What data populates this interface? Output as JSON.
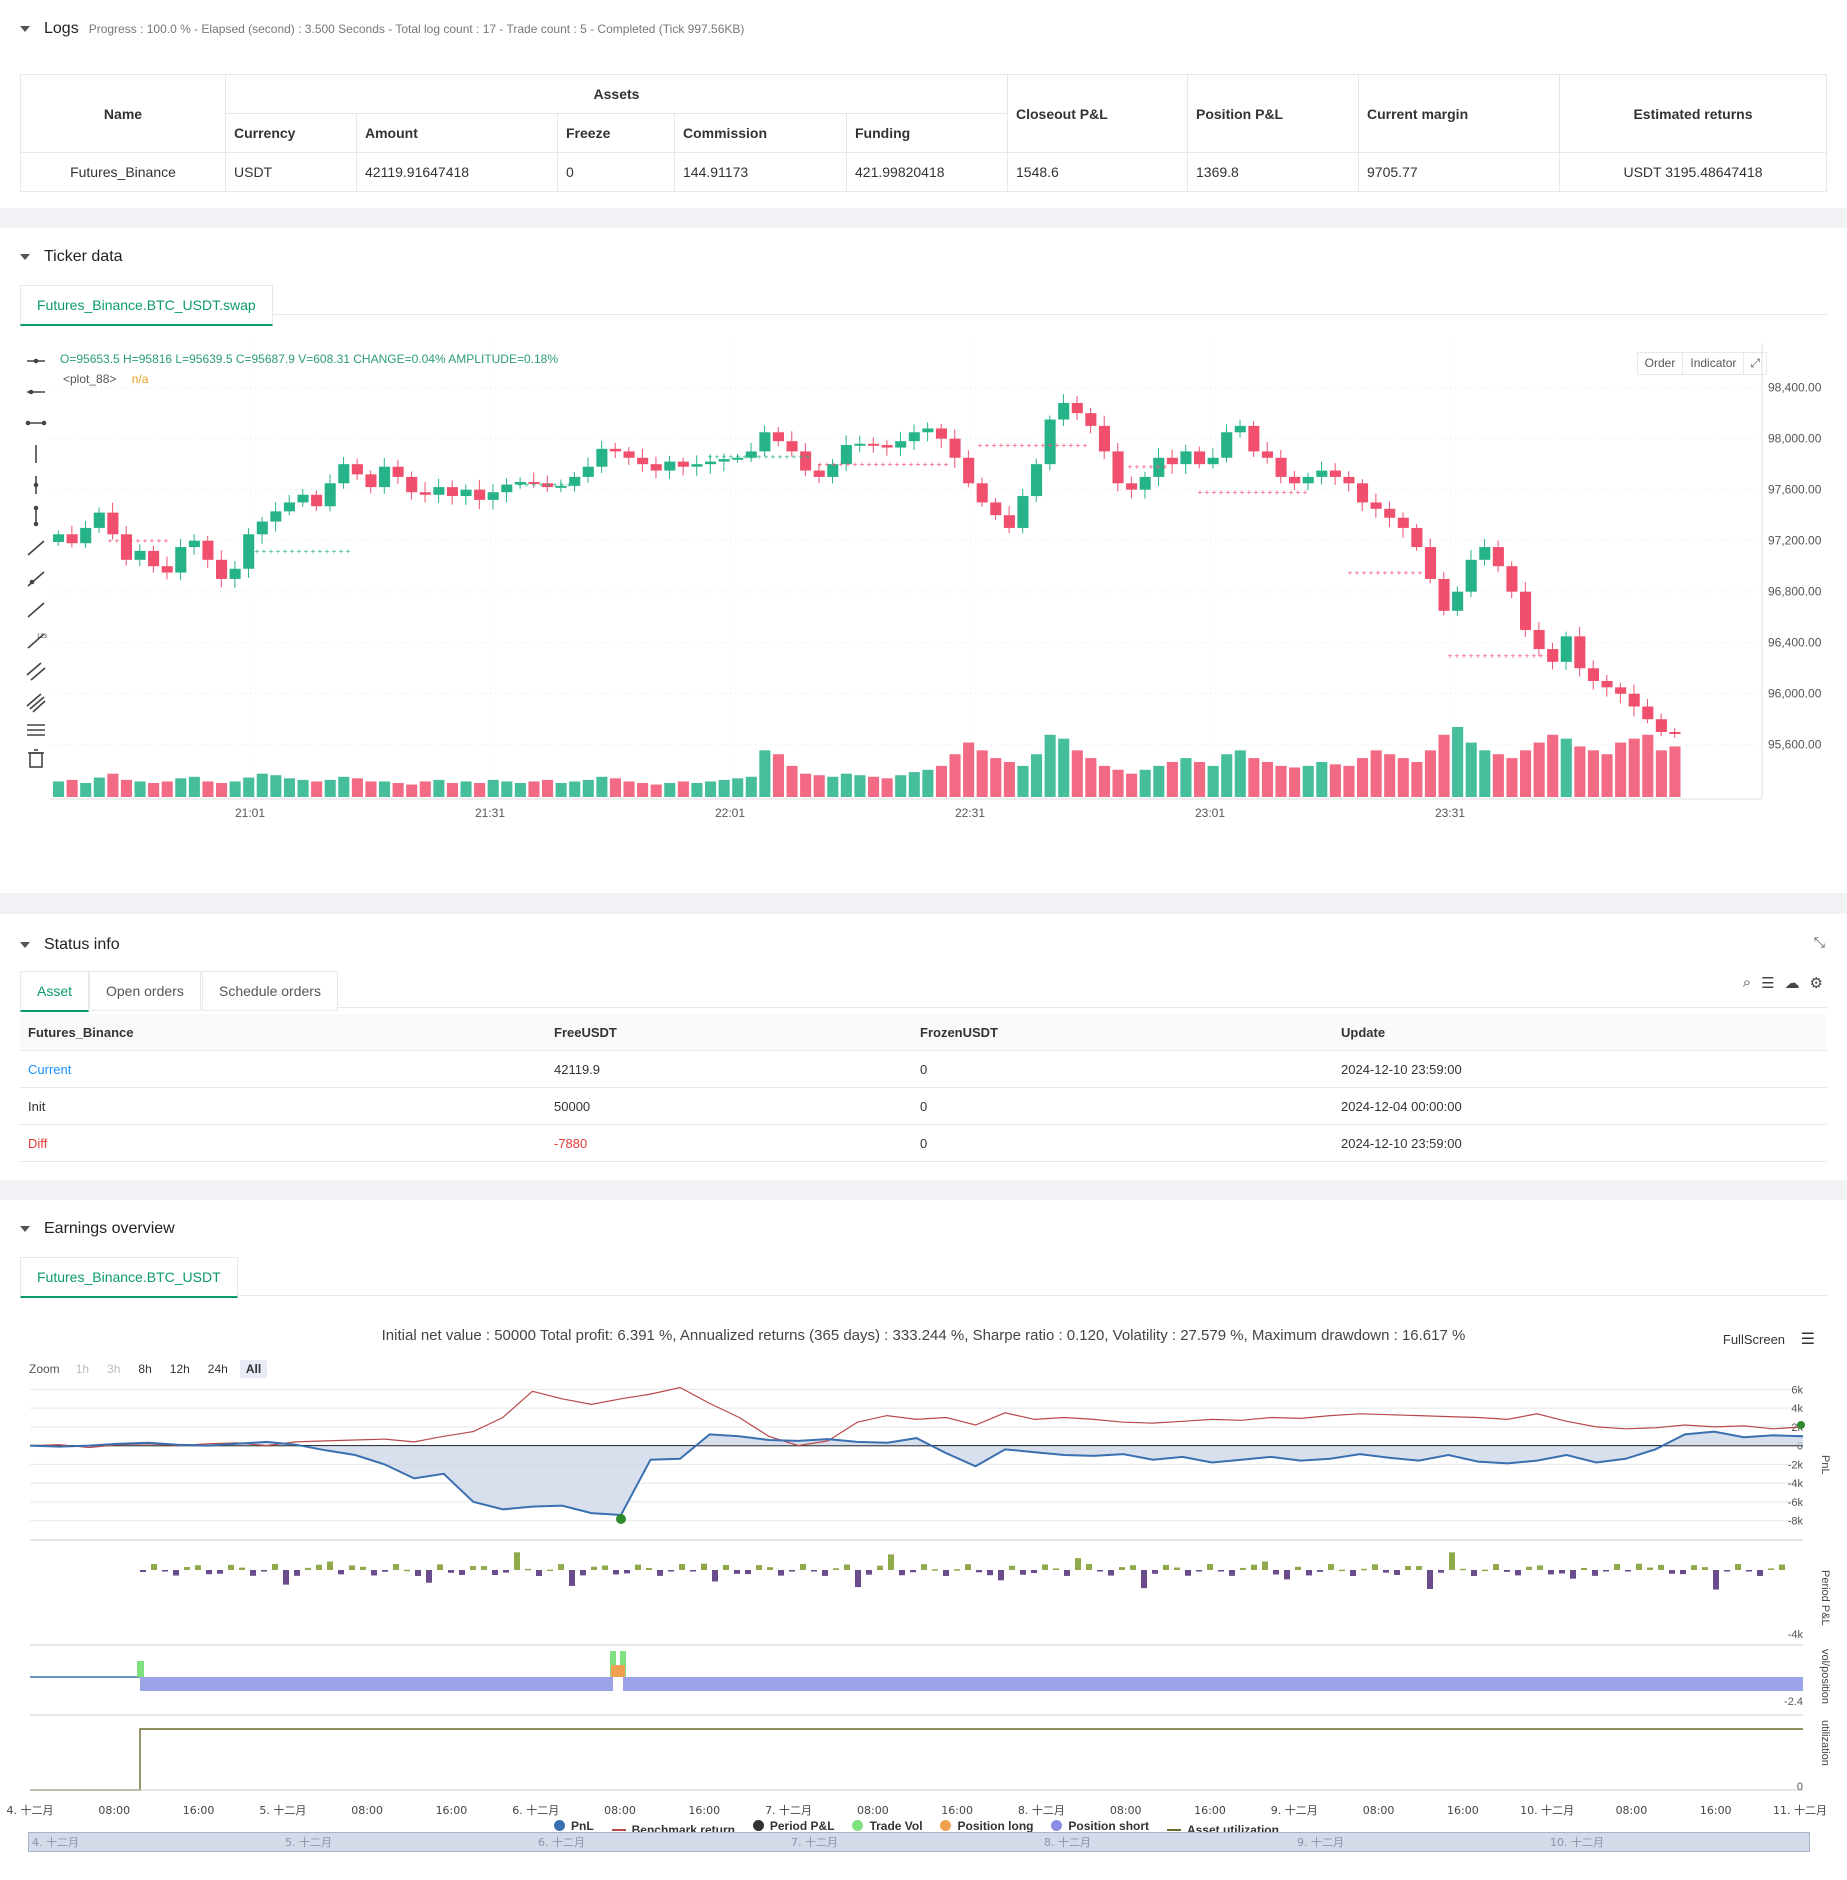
{
  "logs": {
    "title": "Logs",
    "summary": "Progress : 100.0 % - Elapsed (second) : 3.500  Seconds - Total log count : 17 - Trade count : 5 - Completed (Tick 997.56KB)"
  },
  "assets": {
    "headers": {
      "name": "Name",
      "assets": "Assets",
      "currency": "Currency",
      "amount": "Amount",
      "freeze": "Freeze",
      "commission": "Commission",
      "funding": "Funding",
      "closeout": "Closeout P&L",
      "position": "Position P&L",
      "margin": "Current margin",
      "returns": "Estimated returns"
    },
    "row": {
      "name": "Futures_Binance",
      "currency": "USDT",
      "amount": "42119.91647418",
      "freeze": "0",
      "commission": "144.91173",
      "funding": "421.99820418",
      "closeout": "1548.6",
      "position": "1369.8",
      "margin": "9705.77",
      "returns": "USDT 3195.48647418"
    }
  },
  "ticker": {
    "title": "Ticker data",
    "tab": "Futures_Binance.BTC_USDT.swap",
    "ohlc": "O=95653.5 H=95816 L=95639.5 C=95687.9 V=608.31 CHANGE=0.04% AMPLITUDE=0.18%",
    "plot_label": "<plot_88>",
    "plot_value": "n/a",
    "order_btn": "Order",
    "indicator_btn": "Indicator",
    "y_ticks": [
      "98,400.00",
      "98,000.00",
      "97,600.00",
      "97,200.00",
      "96,800.00",
      "96,400.00",
      "96,000.00",
      "95,600.00"
    ],
    "x_ticks": [
      "21:01",
      "21:31",
      "22:01",
      "22:31",
      "23:01",
      "23:31"
    ]
  },
  "chart_data": {
    "type": "candlestick",
    "y_range": [
      95300,
      98750
    ],
    "y_ticks": [
      98400,
      98000,
      97600,
      97200,
      96800,
      96400,
      96000,
      95600
    ],
    "x_labels": [
      "21:01",
      "21:31",
      "22:01",
      "22:31",
      "23:01",
      "23:31"
    ],
    "closes": [
      97250,
      97180,
      97300,
      97420,
      97250,
      97050,
      97120,
      97000,
      96950,
      97150,
      97200,
      97050,
      96900,
      96980,
      97250,
      97350,
      97430,
      97500,
      97560,
      97470,
      97650,
      97800,
      97720,
      97620,
      97780,
      97700,
      97580,
      97560,
      97620,
      97550,
      97600,
      97520,
      97580,
      97640,
      97660,
      97650,
      97620,
      97630,
      97700,
      97780,
      97920,
      97900,
      97850,
      97800,
      97750,
      97820,
      97780,
      97800,
      97820,
      97840,
      97850,
      97900,
      98050,
      97980,
      97900,
      97750,
      97700,
      97800,
      97950,
      97960,
      97950,
      97930,
      97980,
      98050,
      98080,
      98000,
      97850,
      97650,
      97500,
      97400,
      97300,
      97550,
      97800,
      98150,
      98280,
      98200,
      98100,
      97900,
      97650,
      97600,
      97700,
      97850,
      97800,
      97900,
      97800,
      97850,
      98050,
      98100,
      97900,
      97850,
      97700,
      97650,
      97700,
      97750,
      97700,
      97650,
      97500,
      97450,
      97380,
      97300,
      97150,
      96900,
      96650,
      96800,
      97050,
      97150,
      97000,
      96800,
      96500,
      96350,
      96250,
      96450,
      96200,
      96100,
      96050,
      96000,
      95900,
      95800,
      95700,
      95690
    ],
    "volumes": [
      20,
      22,
      18,
      25,
      30,
      22,
      20,
      18,
      20,
      24,
      26,
      20,
      18,
      20,
      25,
      30,
      28,
      24,
      22,
      20,
      22,
      26,
      24,
      20,
      20,
      18,
      16,
      20,
      22,
      18,
      20,
      18,
      22,
      20,
      18,
      20,
      22,
      18,
      20,
      22,
      26,
      24,
      20,
      18,
      16,
      18,
      20,
      18,
      20,
      22,
      24,
      26,
      60,
      55,
      40,
      30,
      28,
      26,
      30,
      28,
      26,
      24,
      28,
      32,
      35,
      40,
      55,
      70,
      60,
      50,
      45,
      40,
      55,
      80,
      75,
      60,
      50,
      40,
      35,
      30,
      35,
      40,
      45,
      50,
      45,
      40,
      55,
      60,
      50,
      45,
      40,
      38,
      40,
      45,
      42,
      40,
      50,
      60,
      55,
      50,
      45,
      60,
      80,
      90,
      70,
      60,
      55,
      50,
      60,
      70,
      80,
      75,
      65,
      60,
      55,
      70,
      75,
      80,
      60,
      65
    ]
  },
  "status": {
    "title": "Status info",
    "tabs": [
      "Asset",
      "Open orders",
      "Schedule orders"
    ],
    "headers": [
      "Futures_Binance",
      "FreeUSDT",
      "FrozenUSDT",
      "Update"
    ],
    "rows": [
      {
        "label": "Current",
        "free": "42119.9",
        "frozen": "0",
        "update": "2024-12-10 23:59:00"
      },
      {
        "label": "Init",
        "free": "50000",
        "frozen": "0",
        "update": "2024-12-04 00:00:00"
      },
      {
        "label": "Diff",
        "free": "-7880",
        "frozen": "0",
        "update": "2024-12-10 23:59:00"
      }
    ],
    "colors": {
      "current": "#1890ff",
      "diff": "#e53935"
    }
  },
  "earnings": {
    "title": "Earnings overview",
    "tab": "Futures_Binance.BTC_USDT",
    "summary": "Initial net value : 50000 Total profit: 6.391 %, Annualized returns (365 days) : 333.244 %, Sharpe ratio : 0.120, Volatility : 27.579 %, Maximum drawdown : 16.617 %",
    "fullscreen": "FullScreen",
    "zoom_label": "Zoom",
    "zoom_buttons": [
      "1h",
      "3h",
      "8h",
      "12h",
      "24h",
      "All"
    ],
    "pnl_ticks": [
      "6k",
      "4k",
      "2k",
      "0",
      "-2k",
      "-4k",
      "-6k",
      "-8k"
    ],
    "period_tick": "-4k",
    "vol_tick": "-2.4",
    "util_tick": "0",
    "axis_titles": [
      "PnL",
      "Period P&L",
      "vol/position",
      "utilization"
    ],
    "x_ticks": [
      "4. 十二月",
      "08:00",
      "16:00",
      "5. 十二月",
      "08:00",
      "16:00",
      "6. 十二月",
      "08:00",
      "16:00",
      "7. 十二月",
      "08:00",
      "16:00",
      "8. 十二月",
      "08:00",
      "16:00",
      "9. 十二月",
      "08:00",
      "16:00",
      "10. 十二月",
      "08:00",
      "16:00",
      "11. 十二月"
    ],
    "nav_ticks": [
      "4. 十二月",
      "5. 十二月",
      "6. 十二月",
      "7. 十二月",
      "8. 十二月",
      "9. 十二月",
      "10. 十二月"
    ],
    "legend": [
      {
        "name": "PnL",
        "color": "#3a6fb0",
        "shape": "dot"
      },
      {
        "name": "Benchmark return",
        "color": "#b84a4a",
        "shape": "line"
      },
      {
        "name": "Period P&L",
        "color": "#333333",
        "shape": "dot"
      },
      {
        "name": "Trade Vol",
        "color": "#7ee07e",
        "shape": "dot"
      },
      {
        "name": "Position long",
        "color": "#f0a050",
        "shape": "dot"
      },
      {
        "name": "Position short",
        "color": "#8c8ce6",
        "shape": "dot"
      },
      {
        "name": "Asset utilization",
        "color": "#6b6b2a",
        "shape": "line"
      }
    ]
  }
}
